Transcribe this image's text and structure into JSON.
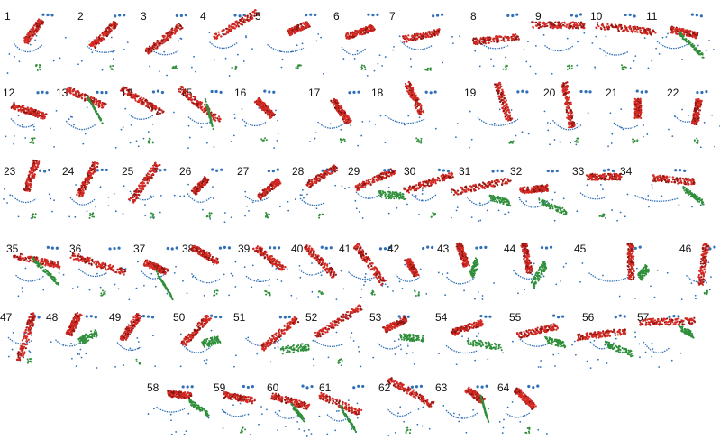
{
  "colors": {
    "red": "#d42a24",
    "dark_red": "#8c1410",
    "green": "#2f8f3a",
    "blue": "#2f6fb8",
    "label": "#111111"
  },
  "panels": [
    {
      "label": "1",
      "kind": "red"
    },
    {
      "label": "2",
      "kind": "red"
    },
    {
      "label": "3",
      "kind": "red"
    },
    {
      "label": "4",
      "kind": "red"
    },
    {
      "label": "5",
      "kind": "red"
    },
    {
      "label": "6",
      "kind": "red"
    },
    {
      "label": "7",
      "kind": "red"
    },
    {
      "label": "8",
      "kind": "red"
    },
    {
      "label": "9",
      "kind": "red"
    },
    {
      "label": "10",
      "kind": "red"
    },
    {
      "label": "11",
      "kind": "red-green"
    },
    {
      "label": "12",
      "kind": "red"
    },
    {
      "label": "13",
      "kind": "red-green"
    },
    {
      "label": "14",
      "kind": "red"
    },
    {
      "label": "15",
      "kind": "red-green"
    },
    {
      "label": "16",
      "kind": "red"
    },
    {
      "label": "17",
      "kind": "red"
    },
    {
      "label": "18",
      "kind": "red"
    },
    {
      "label": "19",
      "kind": "red"
    },
    {
      "label": "20",
      "kind": "red"
    },
    {
      "label": "21",
      "kind": "red"
    },
    {
      "label": "22",
      "kind": "red"
    },
    {
      "label": "23",
      "kind": "red"
    },
    {
      "label": "24",
      "kind": "red"
    },
    {
      "label": "25",
      "kind": "red"
    },
    {
      "label": "26",
      "kind": "red"
    },
    {
      "label": "27",
      "kind": "red"
    },
    {
      "label": "28",
      "kind": "red"
    },
    {
      "label": "29",
      "kind": "red-green"
    },
    {
      "label": "30",
      "kind": "red"
    },
    {
      "label": "31",
      "kind": "red-green"
    },
    {
      "label": "32",
      "kind": "red-green"
    },
    {
      "label": "33",
      "kind": "red"
    },
    {
      "label": "34",
      "kind": "red-green"
    },
    {
      "label": "35",
      "kind": "red-green"
    },
    {
      "label": "36",
      "kind": "red"
    },
    {
      "label": "37",
      "kind": "red-green"
    },
    {
      "label": "38",
      "kind": "red"
    },
    {
      "label": "39",
      "kind": "red"
    },
    {
      "label": "40",
      "kind": "red"
    },
    {
      "label": "41",
      "kind": "red"
    },
    {
      "label": "42",
      "kind": "red"
    },
    {
      "label": "43",
      "kind": "red-green"
    },
    {
      "label": "44",
      "kind": "red-green"
    },
    {
      "label": "45",
      "kind": "red-green"
    },
    {
      "label": "46",
      "kind": "red"
    },
    {
      "label": "47",
      "kind": "red"
    },
    {
      "label": "48",
      "kind": "red-green"
    },
    {
      "label": "49",
      "kind": "red"
    },
    {
      "label": "50",
      "kind": "red-green"
    },
    {
      "label": "51",
      "kind": "red-green"
    },
    {
      "label": "52",
      "kind": "red"
    },
    {
      "label": "53",
      "kind": "red-green"
    },
    {
      "label": "54",
      "kind": "red-green"
    },
    {
      "label": "55",
      "kind": "red-green"
    },
    {
      "label": "56",
      "kind": "red-green"
    },
    {
      "label": "57",
      "kind": "red-green"
    },
    {
      "label": "58",
      "kind": "red-green"
    },
    {
      "label": "59",
      "kind": "red"
    },
    {
      "label": "60",
      "kind": "red-green"
    },
    {
      "label": "61",
      "kind": "red-green"
    },
    {
      "label": "62",
      "kind": "red"
    },
    {
      "label": "63",
      "kind": "red-green"
    },
    {
      "label": "64",
      "kind": "red"
    }
  ]
}
